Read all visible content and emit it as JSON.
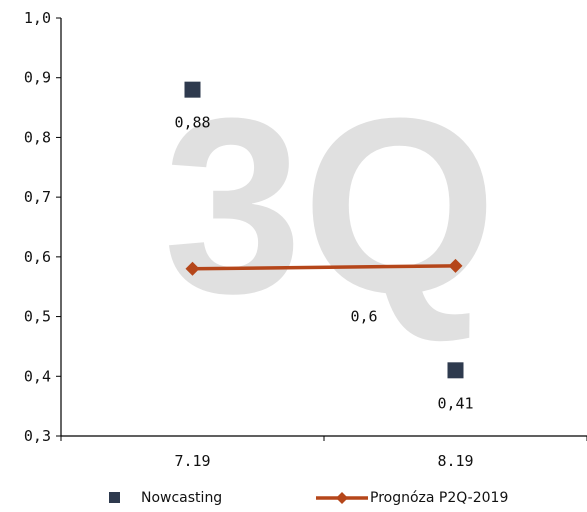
{
  "watermark": "3Q",
  "chart_data": {
    "type": "line",
    "categories": [
      "7.19",
      "8.19"
    ],
    "ylim": [
      0.3,
      1.0
    ],
    "yticks": [
      "0,3",
      "0,4",
      "0,5",
      "0,6",
      "0,7",
      "0,8",
      "0,9",
      "1,0"
    ],
    "series": [
      {
        "name": "Nowcasting",
        "style": "markers",
        "marker": "square",
        "color": "#2e3a4e",
        "values": [
          0.88,
          0.41
        ],
        "labels": [
          "0,88",
          "0,41"
        ]
      },
      {
        "name": "Prognóza P2Q-2019",
        "style": "line",
        "marker": "diamond",
        "color": "#b5461a",
        "values": [
          0.58,
          0.585
        ],
        "labels": [
          "0,6"
        ]
      }
    ],
    "legend_position": "bottom",
    "grid": false
  }
}
